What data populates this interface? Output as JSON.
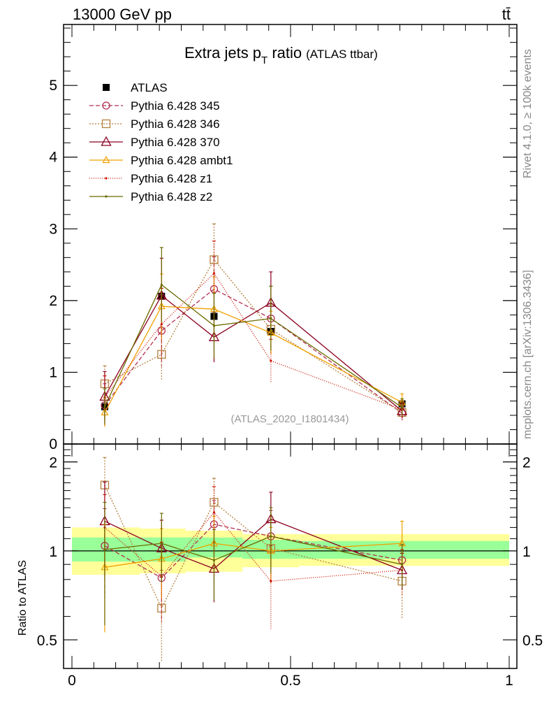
{
  "header": {
    "left": "13000 GeV pp",
    "right": "tt̄"
  },
  "side_labels": {
    "top": "Rivet 4.1.0, ≥ 100k events",
    "bottom": "mcplots.cern.ch [arXiv:1306.3436]"
  },
  "colors": {
    "ATLAS": "#000000",
    "Pythia 6.428 345": "#b03050",
    "Pythia 6.428 346": "#b58040",
    "Pythia 6.428 370": "#8b0020",
    "Pythia 6.428 ambt1": "#f0a000",
    "Pythia 6.428 z1": "#cc1100",
    "Pythia 6.428 z2": "#6b6b00",
    "band_inner": "#99ff99",
    "band_outer": "#ffff99"
  },
  "chart_data": [
    {
      "id": "main",
      "type": "scatter",
      "title": "Extra jets p",
      "title_sub": "T",
      "title_rest": " ratio",
      "title_small": "(ATLAS ttbar)",
      "watermark": "(ATLAS_2020_I1801434)",
      "xlim": [
        0,
        1
      ],
      "ylim": [
        0,
        5.85
      ],
      "yticks": [
        0,
        1,
        2,
        3,
        4,
        5
      ],
      "ytick_labels": [
        "0",
        "1",
        "2",
        "3",
        "4",
        "5"
      ],
      "legend_position": "top-left",
      "series": [
        {
          "name": "ATLAS",
          "marker": "filled-square",
          "dash": "none",
          "x": [
            0.075,
            0.205,
            0.325,
            0.455,
            0.755
          ],
          "y": [
            0.52,
            2.06,
            1.78,
            1.57,
            0.56
          ],
          "xerr": [
            0.0,
            0.0,
            0.0,
            0.0,
            0.0
          ],
          "yerr": [
            0.0,
            0.0,
            0.0,
            0.0,
            0.0
          ]
        },
        {
          "name": "Pythia 6.428 345",
          "marker": "circle",
          "dash": "6,3",
          "x": [
            0.075,
            0.205,
            0.325,
            0.455,
            0.755
          ],
          "y": [
            0.54,
            1.58,
            2.16,
            1.75,
            0.43
          ],
          "yerr": [
            0.3,
            0.5,
            0.45,
            0.45,
            0.1
          ]
        },
        {
          "name": "Pythia 6.428 346",
          "marker": "open-square",
          "dash": "2,2",
          "x": [
            0.075,
            0.205,
            0.325,
            0.455,
            0.755
          ],
          "y": [
            0.84,
            1.25,
            2.57,
            1.6,
            0.44
          ],
          "yerr": [
            0.25,
            0.37,
            0.5,
            0.35,
            0.08
          ]
        },
        {
          "name": "Pythia 6.428 370",
          "marker": "triangle",
          "dash": "none",
          "x": [
            0.075,
            0.205,
            0.325,
            0.455,
            0.755
          ],
          "y": [
            0.66,
            2.07,
            1.49,
            1.97,
            0.46
          ],
          "yerr": [
            0.35,
            0.52,
            0.35,
            0.43,
            0.1
          ]
        },
        {
          "name": "Pythia 6.428 ambt1",
          "marker": "small-triangle",
          "dash": "none",
          "x": [
            0.075,
            0.205,
            0.325,
            0.455,
            0.755
          ],
          "y": [
            0.44,
            1.92,
            1.88,
            1.55,
            0.58
          ],
          "yerr": [
            0.2,
            0.45,
            0.45,
            0.3,
            0.12
          ]
        },
        {
          "name": "Pythia 6.428 z1",
          "marker": "dot",
          "dash": "1,2",
          "x": [
            0.075,
            0.205,
            0.325,
            0.455,
            0.755
          ],
          "y": [
            0.65,
            1.67,
            2.38,
            1.16,
            0.48
          ],
          "yerr": [
            0.3,
            0.5,
            0.45,
            0.3,
            0.1
          ]
        },
        {
          "name": "Pythia 6.428 z2",
          "marker": "dot",
          "dash": "none",
          "x": [
            0.075,
            0.205,
            0.325,
            0.455,
            0.755
          ],
          "y": [
            0.52,
            2.22,
            1.65,
            1.75,
            0.51
          ],
          "yerr": [
            0.25,
            0.52,
            0.45,
            0.45,
            0.12
          ]
        }
      ]
    },
    {
      "id": "ratio",
      "type": "scatter",
      "ylabel": "Ratio to ATLAS",
      "xlim": [
        0,
        1
      ],
      "ylim": [
        0.4,
        2.3
      ],
      "yscale": "log",
      "yticks": [
        0.5,
        1,
        2
      ],
      "ytick_labels": [
        "0.5",
        "1",
        "2"
      ],
      "xticks": [
        0,
        0.5,
        1
      ],
      "xtick_labels": [
        "0",
        "0.5",
        "1"
      ],
      "bands": {
        "edges": [
          0.0,
          0.155,
          0.26,
          0.39,
          0.52,
          1.0
        ],
        "inner_lo": [
          0.92,
          0.92,
          0.95,
          0.94,
          0.94
        ],
        "inner_hi": [
          1.11,
          1.11,
          1.11,
          1.09,
          1.08
        ],
        "outer_lo": [
          0.83,
          0.84,
          0.85,
          0.88,
          0.89
        ],
        "outer_hi": [
          1.2,
          1.19,
          1.17,
          1.14,
          1.14
        ]
      },
      "series": [
        {
          "name": "Pythia 6.428 345",
          "x": [
            0.075,
            0.205,
            0.325,
            0.455,
            0.755
          ],
          "y": [
            1.04,
            0.81,
            1.23,
            1.12,
            0.93
          ],
          "yerr": [
            0.35,
            0.22,
            0.25,
            0.25,
            0.12
          ]
        },
        {
          "name": "Pythia 6.428 346",
          "x": [
            0.075,
            0.205,
            0.325,
            0.455,
            0.755
          ],
          "y": [
            1.67,
            0.64,
            1.46,
            1.02,
            0.79
          ],
          "yerr": [
            0.4,
            0.22,
            0.3,
            0.25,
            0.2
          ]
        },
        {
          "name": "Pythia 6.428 370",
          "x": [
            0.075,
            0.205,
            0.325,
            0.455,
            0.755
          ],
          "y": [
            1.26,
            1.02,
            0.87,
            1.28,
            0.86
          ],
          "yerr": [
            0.45,
            0.25,
            0.2,
            0.3,
            0.12
          ]
        },
        {
          "name": "Pythia 6.428 ambt1",
          "x": [
            0.075,
            0.205,
            0.325,
            0.455,
            0.755
          ],
          "y": [
            0.88,
            0.94,
            1.06,
            1.0,
            1.06
          ],
          "yerr": [
            0.35,
            0.25,
            0.25,
            0.2,
            0.2
          ]
        },
        {
          "name": "Pythia 6.428 z1",
          "x": [
            0.075,
            0.205,
            0.325,
            0.455,
            0.755
          ],
          "y": [
            1.2,
            0.82,
            1.35,
            0.79,
            0.86
          ],
          "yerr": [
            0.35,
            0.25,
            0.3,
            0.25,
            0.15
          ]
        },
        {
          "name": "Pythia 6.428 z2",
          "x": [
            0.075,
            0.205,
            0.325,
            0.455,
            0.755
          ],
          "y": [
            1.01,
            1.06,
            0.93,
            1.12,
            0.9
          ],
          "yerr": [
            0.45,
            0.28,
            0.25,
            0.28,
            0.15
          ]
        }
      ]
    }
  ]
}
